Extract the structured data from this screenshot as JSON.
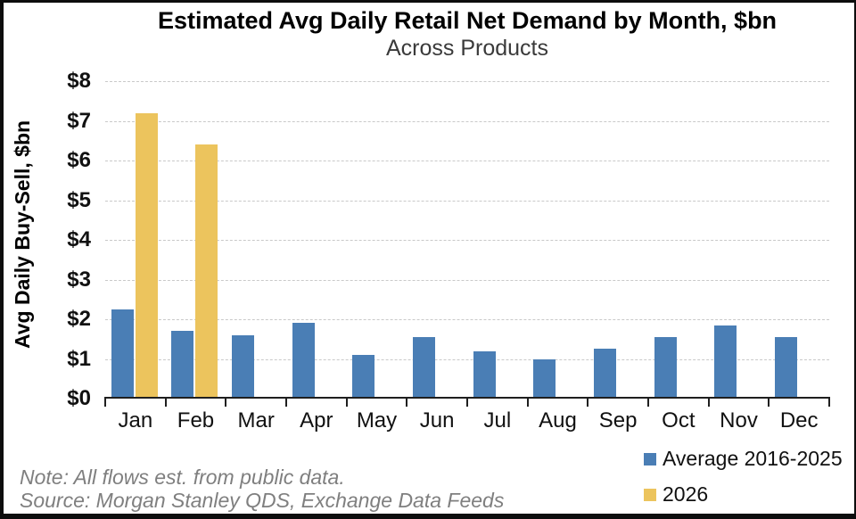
{
  "header": {
    "title": "Estimated Avg Daily Retail Net Demand by Month, $bn",
    "subtitle": "Across Products"
  },
  "footnotes": {
    "note": "Note: All flows est. from public data.",
    "source": "Source: Morgan Stanley QDS, Exchange Data Feeds"
  },
  "legend": {
    "items": [
      {
        "label": "Average 2016-2025",
        "color": "#4A7EB5"
      },
      {
        "label": "2026",
        "color": "#ECC45D"
      }
    ]
  },
  "colors": {
    "series_blue": "#4A7EB5",
    "series_gold": "#ECC45D",
    "gridline": "#C9C9C9",
    "axis": "#1F1F1F",
    "footnote_gray": "#7F7F7F"
  },
  "chart_data": {
    "type": "bar",
    "title": "Estimated Avg Daily Retail Net Demand by Month, $bn",
    "subtitle": "Across Products",
    "categories": [
      "Jan",
      "Feb",
      "Mar",
      "Apr",
      "May",
      "Jun",
      "Jul",
      "Aug",
      "Sep",
      "Oct",
      "Nov",
      "Dec"
    ],
    "series": [
      {
        "name": "Average 2016-2025",
        "color": "#4A7EB5",
        "values": [
          2.25,
          1.7,
          1.6,
          1.9,
          1.1,
          1.55,
          1.2,
          1.0,
          1.25,
          1.55,
          1.85,
          1.55
        ]
      },
      {
        "name": "2026",
        "color": "#ECC45D",
        "values": [
          7.2,
          6.4,
          null,
          null,
          null,
          null,
          null,
          null,
          null,
          null,
          null,
          null
        ]
      }
    ],
    "xlabel": "",
    "ylabel": "Avg Daily Buy-Sell, $bn",
    "ylim": [
      0,
      8
    ],
    "ytick_prefix": "$",
    "yticks": [
      0,
      1,
      2,
      3,
      4,
      5,
      6,
      7,
      8
    ],
    "grid": "horizontal-dashed",
    "legend_position": "bottom-right"
  }
}
